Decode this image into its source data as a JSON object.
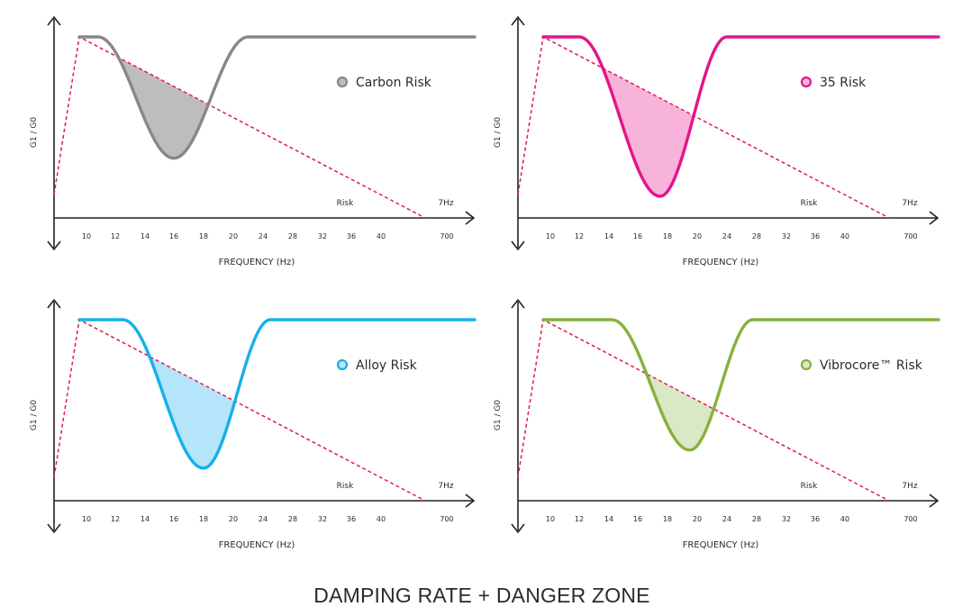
{
  "main_title": "DAMPING RATE + DANGER ZONE",
  "chart_data": [
    {
      "type": "line",
      "legend": "Carbon Risk",
      "color": "#888888",
      "fill": "#bdbdbd",
      "xlabel": "FREQUENCY (Hz)",
      "ylabel": "G1 / G0",
      "x_ticks": [
        "10",
        "12",
        "14",
        "16",
        "18",
        "20",
        "24",
        "28",
        "32",
        "36",
        "40",
        "700"
      ],
      "risk_label": "Risk",
      "hz_label": "7Hz",
      "dip_start": 10.8,
      "dip_min": 16,
      "dip_end": 22,
      "dip_depth": 0.67
    },
    {
      "type": "line",
      "legend": "35 Risk",
      "color": "#e4148c",
      "fill": "#f7b3d9",
      "xlabel": "FREQUENCY (Hz)",
      "ylabel": "G1 / G0",
      "x_ticks": [
        "10",
        "12",
        "14",
        "16",
        "18",
        "20",
        "24",
        "28",
        "32",
        "36",
        "40",
        "700"
      ],
      "risk_label": "Risk",
      "hz_label": "7Hz",
      "dip_start": 12,
      "dip_min": 17.5,
      "dip_end": 24,
      "dip_depth": 0.88
    },
    {
      "type": "line",
      "legend": "Alloy Risk",
      "color": "#16b0ea",
      "fill": "#b4e5fa",
      "xlabel": "FREQUENCY (Hz)",
      "ylabel": "G1 / G0",
      "x_ticks": [
        "10",
        "12",
        "14",
        "16",
        "18",
        "20",
        "24",
        "28",
        "32",
        "36",
        "40",
        "700"
      ],
      "risk_label": "Risk",
      "hz_label": "7Hz",
      "dip_start": 12.5,
      "dip_min": 18,
      "dip_end": 25,
      "dip_depth": 0.82
    },
    {
      "type": "line",
      "legend": "Vibrocore™ Risk",
      "color": "#86b23c",
      "fill": "#dbe8c6",
      "xlabel": "FREQUENCY (Hz)",
      "ylabel": "G1 / G0",
      "x_ticks": [
        "10",
        "12",
        "14",
        "16",
        "18",
        "20",
        "24",
        "28",
        "32",
        "36",
        "40",
        "700"
      ],
      "risk_label": "Risk",
      "hz_label": "7Hz",
      "dip_start": 14.2,
      "dip_min": 19.5,
      "dip_end": 27.5,
      "dip_depth": 0.72
    }
  ]
}
